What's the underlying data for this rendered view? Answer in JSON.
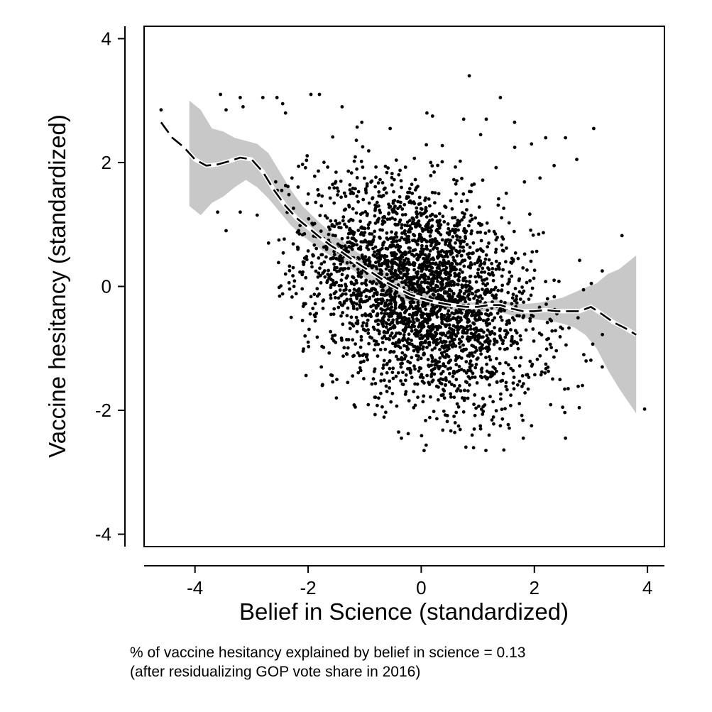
{
  "chart_data": {
    "type": "scatter",
    "xlabel": "Belief in Science (standardized)",
    "ylabel": "Vaccine hesitancy (standardized)",
    "xlim": [
      -4.9,
      4.3
    ],
    "ylim": [
      -4.2,
      4.2
    ],
    "xticks": [
      -4,
      -2,
      0,
      2,
      4
    ],
    "yticks": [
      -4,
      -2,
      0,
      2,
      4
    ],
    "xtick_labels": [
      "-4",
      "-2",
      "0",
      "2",
      "4"
    ],
    "ytick_labels": [
      "-4",
      "-2",
      "0",
      "2",
      "4"
    ],
    "grid": false,
    "legend": "none",
    "colors": {
      "points": "#000000",
      "band": "#c8c8c8",
      "line": "#000000"
    },
    "scatter_cloud": {
      "n_points": 3000,
      "center": [
        0.0,
        -0.1
      ],
      "sd": [
        1.0,
        0.9
      ],
      "correlation": -0.36
    },
    "points_outlying": [
      {
        "x": -4.6,
        "y": 2.85
      },
      {
        "x": -3.55,
        "y": 3.1
      },
      {
        "x": -3.2,
        "y": 3.05
      },
      {
        "x": -3.15,
        "y": 2.9
      },
      {
        "x": -2.8,
        "y": 3.05
      },
      {
        "x": -2.55,
        "y": 3.05
      },
      {
        "x": -2.45,
        "y": 2.95
      },
      {
        "x": -1.95,
        "y": 3.1
      },
      {
        "x": -1.8,
        "y": 3.1
      },
      {
        "x": -2.4,
        "y": 2.8
      },
      {
        "x": -3.45,
        "y": 2.85
      },
      {
        "x": -3.6,
        "y": 1.2
      },
      {
        "x": -3.45,
        "y": 0.9
      },
      {
        "x": -3.2,
        "y": 1.2
      },
      {
        "x": -2.9,
        "y": 1.15
      },
      {
        "x": -2.7,
        "y": 0.7
      },
      {
        "x": -2.3,
        "y": -0.5
      },
      {
        "x": -2.4,
        "y": 0.2
      },
      {
        "x": -2.25,
        "y": 0.0
      },
      {
        "x": -2.1,
        "y": -0.55
      },
      {
        "x": -2.0,
        "y": -0.9
      },
      {
        "x": 0.85,
        "y": 3.4
      },
      {
        "x": 1.4,
        "y": 3.05
      },
      {
        "x": 0.1,
        "y": 2.8
      },
      {
        "x": 0.2,
        "y": 2.75
      },
      {
        "x": 0.75,
        "y": 2.7
      },
      {
        "x": 1.15,
        "y": 2.7
      },
      {
        "x": 1.65,
        "y": 2.65
      },
      {
        "x": 3.05,
        "y": 2.55
      },
      {
        "x": 2.55,
        "y": 2.4
      },
      {
        "x": 2.2,
        "y": 2.4
      },
      {
        "x": 2.75,
        "y": 2.05
      },
      {
        "x": 1.95,
        "y": 2.3
      },
      {
        "x": 3.55,
        "y": 0.82
      },
      {
        "x": 2.8,
        "y": 0.42
      },
      {
        "x": 3.2,
        "y": 0.25
      },
      {
        "x": 2.35,
        "y": 0.1
      },
      {
        "x": 3.95,
        "y": -1.98
      },
      {
        "x": 2.55,
        "y": -2.45
      },
      {
        "x": 2.85,
        "y": -1.6
      },
      {
        "x": 3.2,
        "y": -1.3
      },
      {
        "x": 2.5,
        "y": -1.95
      },
      {
        "x": 1.95,
        "y": -2.25
      },
      {
        "x": 1.4,
        "y": -2.25
      },
      {
        "x": 1.2,
        "y": -2.4
      },
      {
        "x": 1.05,
        "y": -2.3
      },
      {
        "x": 0.9,
        "y": -2.4
      },
      {
        "x": 0.05,
        "y": -2.65
      },
      {
        "x": -0.35,
        "y": -2.45
      },
      {
        "x": -0.4,
        "y": -2.35
      },
      {
        "x": 0.6,
        "y": -2.2
      },
      {
        "x": -1.5,
        "y": -1.8
      },
      {
        "x": -1.3,
        "y": -1.55
      },
      {
        "x": -1.75,
        "y": -1.6
      },
      {
        "x": 2.35,
        "y": 1.95
      },
      {
        "x": 2.1,
        "y": 1.75
      },
      {
        "x": 1.05,
        "y": 2.45
      },
      {
        "x": -1.4,
        "y": 2.9
      },
      {
        "x": -1.05,
        "y": 2.65
      },
      {
        "x": -0.55,
        "y": 2.55
      }
    ],
    "smooth_line": {
      "x": [
        -4.6,
        -4.4,
        -4.2,
        -4.0,
        -3.8,
        -3.6,
        -3.4,
        -3.2,
        -3.0,
        -2.8,
        -2.6,
        -2.4,
        -2.2,
        -2.0,
        -1.8,
        -1.6,
        -1.4,
        -1.2,
        -1.0,
        -0.8,
        -0.6,
        -0.4,
        -0.2,
        0.0,
        0.2,
        0.4,
        0.6,
        0.8,
        1.0,
        1.2,
        1.4,
        1.6,
        1.8,
        2.0,
        2.2,
        2.4,
        2.6,
        2.8,
        3.0,
        3.2,
        3.4,
        3.6,
        3.8
      ],
      "y": [
        2.65,
        2.4,
        2.25,
        2.05,
        1.95,
        1.97,
        2.02,
        2.08,
        2.05,
        1.85,
        1.55,
        1.3,
        1.1,
        0.95,
        0.8,
        0.66,
        0.55,
        0.42,
        0.3,
        0.18,
        0.06,
        -0.04,
        -0.13,
        -0.19,
        -0.24,
        -0.28,
        -0.31,
        -0.33,
        -0.33,
        -0.3,
        -0.3,
        -0.36,
        -0.4,
        -0.4,
        -0.38,
        -0.4,
        -0.4,
        -0.4,
        -0.33,
        -0.45,
        -0.58,
        -0.67,
        -0.78
      ]
    },
    "confidence_band": {
      "x": [
        -4.1,
        -3.9,
        -3.7,
        -3.5,
        -3.3,
        -3.1,
        -2.9,
        -2.7,
        -2.5,
        -2.3,
        -2.1,
        -1.9,
        -1.7,
        -1.5,
        -1.3,
        -1.1,
        -0.9,
        -0.7,
        -0.5,
        -0.3,
        -0.1,
        0.1,
        0.3,
        0.5,
        0.7,
        0.9,
        1.1,
        1.3,
        1.5,
        1.7,
        1.9,
        2.1,
        2.3,
        2.5,
        2.7,
        2.9,
        3.1,
        3.3,
        3.5,
        3.8
      ],
      "upper": [
        3.0,
        2.85,
        2.55,
        2.5,
        2.4,
        2.35,
        2.3,
        2.15,
        1.85,
        1.55,
        1.3,
        1.12,
        0.95,
        0.8,
        0.67,
        0.53,
        0.4,
        0.27,
        0.15,
        0.05,
        -0.04,
        -0.1,
        -0.15,
        -0.2,
        -0.24,
        -0.26,
        -0.25,
        -0.22,
        -0.24,
        -0.28,
        -0.28,
        -0.26,
        -0.22,
        -0.18,
        -0.1,
        -0.02,
        0.05,
        0.2,
        0.28,
        0.5
      ],
      "lower": [
        1.3,
        1.15,
        1.35,
        1.45,
        1.6,
        1.72,
        1.6,
        1.42,
        1.2,
        0.98,
        0.82,
        0.68,
        0.55,
        0.44,
        0.32,
        0.2,
        0.08,
        -0.04,
        -0.14,
        -0.22,
        -0.28,
        -0.32,
        -0.36,
        -0.38,
        -0.4,
        -0.41,
        -0.4,
        -0.38,
        -0.44,
        -0.5,
        -0.52,
        -0.54,
        -0.56,
        -0.6,
        -0.66,
        -0.78,
        -1.0,
        -1.35,
        -1.65,
        -2.05
      ]
    }
  },
  "note": {
    "line1": "% of vaccine hesitancy explained by belief in science = 0.13",
    "line2": "(after residualizing GOP vote share in 2016)"
  }
}
